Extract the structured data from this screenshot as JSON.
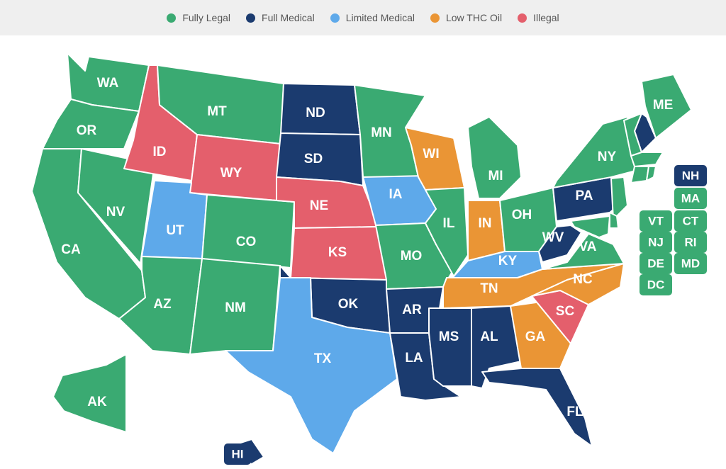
{
  "colors": {
    "fully_legal": "#3aaa72",
    "full_medical": "#1b3b6f",
    "limited_medical": "#5ea9ea",
    "low_thc_oil": "#ea9535",
    "illegal": "#e45f6c"
  },
  "legend": [
    {
      "key": "fully_legal",
      "label": "Fully Legal"
    },
    {
      "key": "full_medical",
      "label": "Full Medical"
    },
    {
      "key": "limited_medical",
      "label": "Limited Medical"
    },
    {
      "key": "low_thc_oil",
      "label": "Low THC Oil"
    },
    {
      "key": "illegal",
      "label": "Illegal"
    }
  ],
  "states": {
    "WA": "fully_legal",
    "OR": "fully_legal",
    "CA": "fully_legal",
    "NV": "fully_legal",
    "ID": "illegal",
    "MT": "fully_legal",
    "WY": "illegal",
    "UT": "limited_medical",
    "AZ": "fully_legal",
    "CO": "fully_legal",
    "NM": "fully_legal",
    "ND": "full_medical",
    "SD": "full_medical",
    "NE": "illegal",
    "KS": "illegal",
    "OK": "full_medical",
    "TX": "limited_medical",
    "MN": "fully_legal",
    "IA": "limited_medical",
    "MO": "fully_legal",
    "AR": "full_medical",
    "LA": "full_medical",
    "WI": "low_thc_oil",
    "IL": "fully_legal",
    "MI": "fully_legal",
    "IN": "low_thc_oil",
    "OH": "fully_legal",
    "KY": "limited_medical",
    "TN": "low_thc_oil",
    "MS": "full_medical",
    "AL": "full_medical",
    "GA": "low_thc_oil",
    "FL": "full_medical",
    "SC": "illegal",
    "NC": "low_thc_oil",
    "VA": "fully_legal",
    "WV": "full_medical",
    "PA": "full_medical",
    "NY": "fully_legal",
    "ME": "fully_legal",
    "AK": "fully_legal",
    "HI": "full_medical",
    "NH": "full_medical",
    "MA": "fully_legal",
    "VT": "fully_legal",
    "CT": "fully_legal",
    "NJ": "fully_legal",
    "RI": "fully_legal",
    "DE": "fully_legal",
    "MD": "fully_legal",
    "DC": "fully_legal"
  }
}
